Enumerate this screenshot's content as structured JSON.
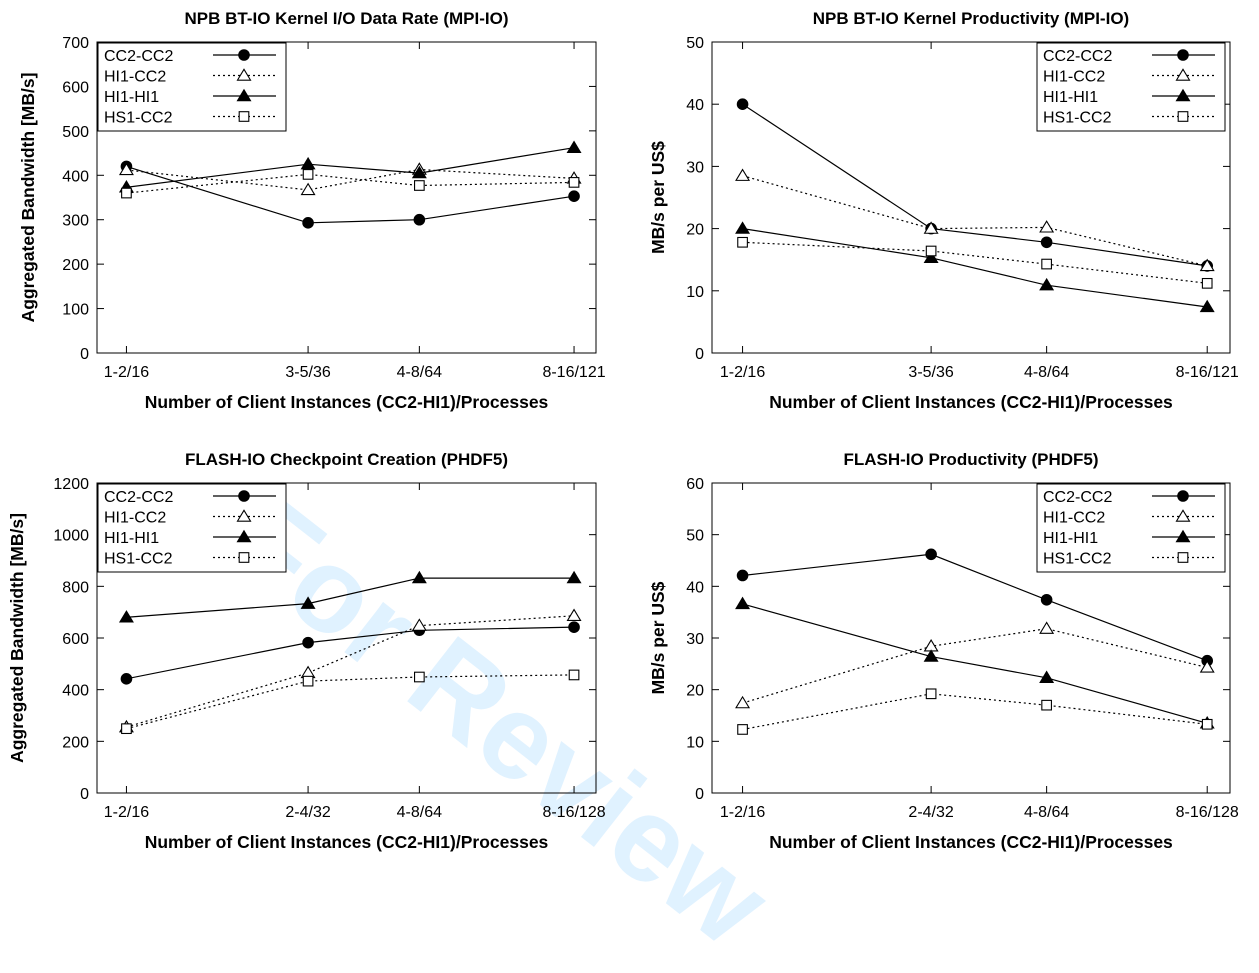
{
  "watermark": "For Review",
  "chart_data": [
    {
      "type": "line",
      "title": "NPB BT-IO Kernel I/O Data Rate (MPI-IO)",
      "xlabel": "Number of Client Instances (CC2-HI1)/Processes",
      "ylabel": "Aggregated Bandwidth [MB/s]",
      "x": [
        "1-2/16",
        "3-5/36",
        "4-8/64",
        "8-16/121"
      ],
      "x_positions": [
        16,
        36,
        64,
        121
      ],
      "ylim": [
        0,
        700
      ],
      "yticks": [
        0,
        100,
        200,
        300,
        400,
        500,
        600,
        700
      ],
      "legend_position": "top-left",
      "series": [
        {
          "name": "CC2-CC2",
          "values": [
            420,
            293,
            300,
            353
          ]
        },
        {
          "name": "HI1-CC2",
          "values": [
            412,
            367,
            413,
            393
          ]
        },
        {
          "name": "HI1-HI1",
          "values": [
            373,
            425,
            405,
            462
          ]
        },
        {
          "name": "HS1-CC2",
          "values": [
            360,
            402,
            377,
            384
          ]
        }
      ]
    },
    {
      "type": "line",
      "title": "NPB BT-IO Kernel Productivity (MPI-IO)",
      "xlabel": "Number of Client Instances (CC2-HI1)/Processes",
      "ylabel": "MB/s per US$",
      "x": [
        "1-2/16",
        "3-5/36",
        "4-8/64",
        "8-16/121"
      ],
      "x_positions": [
        16,
        36,
        64,
        121
      ],
      "ylim": [
        0,
        50
      ],
      "yticks": [
        0,
        10,
        20,
        30,
        40,
        50
      ],
      "legend_position": "top-right",
      "series": [
        {
          "name": "CC2-CC2",
          "values": [
            40,
            20,
            17.8,
            14
          ]
        },
        {
          "name": "HI1-CC2",
          "values": [
            28.5,
            20,
            20.2,
            14
          ]
        },
        {
          "name": "HI1-HI1",
          "values": [
            20,
            15.3,
            10.9,
            7.4
          ]
        },
        {
          "name": "HS1-CC2",
          "values": [
            17.8,
            16.4,
            14.3,
            11.2
          ]
        }
      ]
    },
    {
      "type": "line",
      "title": "FLASH-IO Checkpoint Creation (PHDF5)",
      "xlabel": "Number of Client Instances (CC2-HI1)/Processes",
      "ylabel": "Aggregated Bandwidth [MB/s]",
      "x": [
        "1-2/16",
        "2-4/32",
        "4-8/64",
        "8-16/128"
      ],
      "x_positions": [
        16,
        32,
        64,
        128
      ],
      "ylim": [
        0,
        1200
      ],
      "yticks": [
        0,
        200,
        400,
        600,
        800,
        1000,
        1200
      ],
      "legend_position": "top-left",
      "series": [
        {
          "name": "CC2-CC2",
          "values": [
            442,
            582,
            630,
            642
          ]
        },
        {
          "name": "HI1-CC2",
          "values": [
            255,
            465,
            648,
            686
          ]
        },
        {
          "name": "HI1-HI1",
          "values": [
            680,
            733,
            832,
            832
          ]
        },
        {
          "name": "HS1-CC2",
          "values": [
            249,
            433,
            449,
            457
          ]
        }
      ]
    },
    {
      "type": "line",
      "title": "FLASH-IO Productivity (PHDF5)",
      "xlabel": "Number of Client Instances (CC2-HI1)/Processes",
      "ylabel": "MB/s per US$",
      "x": [
        "1-2/16",
        "2-4/32",
        "4-8/64",
        "8-16/128"
      ],
      "x_positions": [
        16,
        32,
        64,
        128
      ],
      "ylim": [
        0,
        60
      ],
      "yticks": [
        0,
        10,
        20,
        30,
        40,
        50,
        60
      ],
      "legend_position": "top-right",
      "series": [
        {
          "name": "CC2-CC2",
          "values": [
            42.1,
            46.2,
            37.4,
            25.6
          ]
        },
        {
          "name": "HI1-CC2",
          "values": [
            17.4,
            28.4,
            31.8,
            24.3
          ]
        },
        {
          "name": "HI1-HI1",
          "values": [
            36.6,
            26.4,
            22.3,
            13.5
          ]
        },
        {
          "name": "HS1-CC2",
          "values": [
            12.3,
            19.2,
            17,
            13.3
          ]
        }
      ]
    }
  ]
}
